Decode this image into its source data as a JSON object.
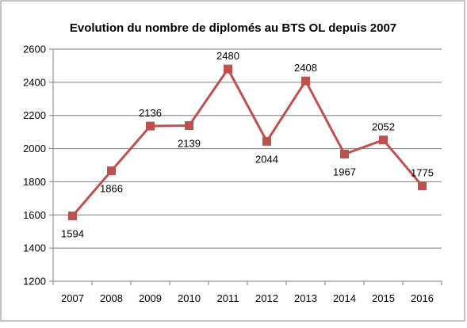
{
  "chart_data": {
    "type": "line",
    "title": "Evolution du nombre de diplomés au BTS OL depuis 2007",
    "xlabel": "",
    "ylabel": "",
    "categories": [
      "2007",
      "2008",
      "2009",
      "2010",
      "2011",
      "2012",
      "2013",
      "2014",
      "2015",
      "2016"
    ],
    "series": [
      {
        "values": [
          1594,
          1866,
          2136,
          2139,
          2480,
          2044,
          2408,
          1967,
          2052,
          1775
        ],
        "color": "#c0504d",
        "marker": "square"
      }
    ],
    "ylim": [
      1200,
      2600
    ],
    "yticks": [
      "1200",
      "1400",
      "1600",
      "1800",
      "2000",
      "2200",
      "2400",
      "2600"
    ],
    "data_labels": [
      "1594",
      "1866",
      "2136",
      "2139",
      "2480",
      "2044",
      "2408",
      "1967",
      "2052",
      "1775"
    ],
    "data_label_positions": [
      "below",
      "below",
      "above",
      "below",
      "above",
      "below",
      "above",
      "below",
      "above",
      "above"
    ],
    "grid": "horizontal",
    "legend": "none",
    "colors": {
      "series": "#c0504d",
      "grid": "#7f7f7f",
      "axis": "#7f7f7f",
      "frame": "#7f7f7f"
    }
  }
}
